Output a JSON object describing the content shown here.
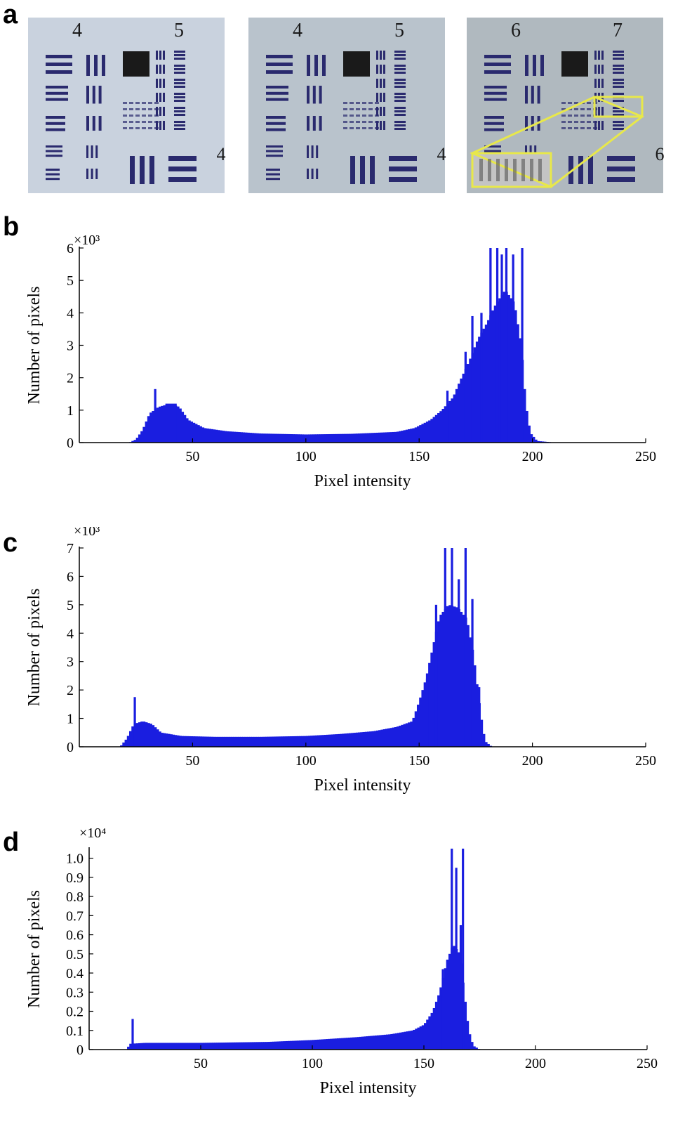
{
  "panel_labels": [
    "a",
    "b",
    "c",
    "d"
  ],
  "panel_a": {
    "images": [
      {
        "top_left": "4",
        "top_right": "5",
        "side": "4",
        "highlight": false
      },
      {
        "top_left": "4",
        "top_right": "5",
        "side": "4",
        "highlight": false
      },
      {
        "top_left": "6",
        "top_right": "7",
        "side": "6",
        "highlight": true
      }
    ]
  },
  "colors": {
    "bars": "#1a1ee0",
    "axis": "#000000",
    "highlight": "#e8e84a"
  },
  "chart_data": [
    {
      "panel": "b",
      "type": "bar",
      "xlabel": "Pixel intensity",
      "ylabel": "Number of pixels",
      "multiplier": "×10³",
      "xlim": [
        0,
        250
      ],
      "ylim": [
        0,
        6
      ],
      "xticks": [
        50,
        100,
        150,
        200,
        250
      ],
      "yticks": [
        0,
        1,
        2,
        3,
        4,
        5,
        6
      ],
      "ytick_labels": [
        "0",
        "1",
        "2",
        "3",
        "4",
        "5",
        "6"
      ],
      "peaks": [
        {
          "x": 33,
          "y": 1.65,
          "w": 1
        },
        {
          "x": 38,
          "y": 1.2,
          "w": 5
        },
        {
          "x": 162,
          "y": 1.6,
          "w": 1
        },
        {
          "x": 170,
          "y": 2.8,
          "w": 1
        },
        {
          "x": 173,
          "y": 3.9,
          "w": 1
        },
        {
          "x": 177,
          "y": 4.0,
          "w": 1
        },
        {
          "x": 181,
          "y": 6.3,
          "w": 1
        },
        {
          "x": 184,
          "y": 6.3,
          "w": 1
        },
        {
          "x": 186,
          "y": 5.8,
          "w": 1
        },
        {
          "x": 188,
          "y": 6.3,
          "w": 1
        },
        {
          "x": 191,
          "y": 5.8,
          "w": 1
        },
        {
          "x": 195,
          "y": 6.3,
          "w": 1
        }
      ],
      "envelope": [
        [
          0,
          0
        ],
        [
          22,
          0
        ],
        [
          25,
          0.1
        ],
        [
          28,
          0.4
        ],
        [
          31,
          0.9
        ],
        [
          35,
          1.1
        ],
        [
          40,
          1.2
        ],
        [
          44,
          1.1
        ],
        [
          48,
          0.7
        ],
        [
          55,
          0.45
        ],
        [
          65,
          0.35
        ],
        [
          80,
          0.28
        ],
        [
          100,
          0.25
        ],
        [
          120,
          0.27
        ],
        [
          140,
          0.33
        ],
        [
          148,
          0.45
        ],
        [
          155,
          0.7
        ],
        [
          160,
          1.0
        ],
        [
          165,
          1.4
        ],
        [
          168,
          1.9
        ],
        [
          172,
          2.5
        ],
        [
          176,
          3.2
        ],
        [
          180,
          3.7
        ],
        [
          184,
          4.3
        ],
        [
          188,
          4.7
        ],
        [
          192,
          4.3
        ],
        [
          195,
          3.0
        ],
        [
          197,
          1.2
        ],
        [
          199,
          0.3
        ],
        [
          202,
          0.05
        ],
        [
          210,
          0
        ],
        [
          250,
          0
        ]
      ]
    },
    {
      "panel": "c",
      "type": "bar",
      "xlabel": "Pixel intensity",
      "ylabel": "Number of pixels",
      "multiplier": "×10³",
      "xlim": [
        0,
        250
      ],
      "ylim": [
        0,
        7
      ],
      "xticks": [
        50,
        100,
        150,
        200,
        250
      ],
      "yticks": [
        0,
        1,
        2,
        3,
        4,
        5,
        6,
        7
      ],
      "ytick_labels": [
        "0",
        "1",
        "2",
        "3",
        "4",
        "5",
        "6",
        "7"
      ],
      "peaks": [
        {
          "x": 24,
          "y": 1.75,
          "w": 1
        },
        {
          "x": 153,
          "y": 2.4,
          "w": 1
        },
        {
          "x": 157,
          "y": 5.0,
          "w": 1
        },
        {
          "x": 161,
          "y": 7.3,
          "w": 1
        },
        {
          "x": 164,
          "y": 7.3,
          "w": 1
        },
        {
          "x": 167,
          "y": 5.9,
          "w": 1
        },
        {
          "x": 170,
          "y": 7.3,
          "w": 1
        },
        {
          "x": 173,
          "y": 5.2,
          "w": 1
        },
        {
          "x": 176,
          "y": 2.1,
          "w": 1
        }
      ],
      "envelope": [
        [
          0,
          0
        ],
        [
          18,
          0
        ],
        [
          21,
          0.3
        ],
        [
          24,
          0.8
        ],
        [
          28,
          0.9
        ],
        [
          32,
          0.8
        ],
        [
          36,
          0.5
        ],
        [
          45,
          0.38
        ],
        [
          60,
          0.35
        ],
        [
          80,
          0.35
        ],
        [
          100,
          0.38
        ],
        [
          115,
          0.45
        ],
        [
          130,
          0.55
        ],
        [
          140,
          0.7
        ],
        [
          147,
          0.9
        ],
        [
          150,
          1.6
        ],
        [
          153,
          2.4
        ],
        [
          156,
          3.5
        ],
        [
          159,
          4.6
        ],
        [
          163,
          5.0
        ],
        [
          167,
          4.9
        ],
        [
          171,
          4.5
        ],
        [
          174,
          3.2
        ],
        [
          177,
          1.2
        ],
        [
          179,
          0.2
        ],
        [
          182,
          0
        ],
        [
          250,
          0
        ]
      ]
    },
    {
      "panel": "d",
      "type": "bar",
      "xlabel": "Pixel intensity",
      "ylabel": "Number of pixels",
      "multiplier": "×10⁴",
      "xlim": [
        0,
        250
      ],
      "ylim": [
        0,
        1.05
      ],
      "xticks": [
        50,
        100,
        150,
        200,
        250
      ],
      "yticks": [
        0,
        0.1,
        0.2,
        0.3,
        0.4,
        0.5,
        0.6,
        0.7,
        0.8,
        0.9,
        1.0
      ],
      "ytick_labels": [
        "0",
        "0.1",
        "0.2",
        "0.3",
        "0.4",
        "0.5",
        "0.6",
        "0.7",
        "0.8",
        "0.9",
        "1.0"
      ],
      "peaks": [
        {
          "x": 19,
          "y": 0.16,
          "w": 1
        },
        {
          "x": 158,
          "y": 0.42,
          "w": 1
        },
        {
          "x": 160,
          "y": 0.47,
          "w": 1
        },
        {
          "x": 162,
          "y": 1.06,
          "w": 1
        },
        {
          "x": 164,
          "y": 0.95,
          "w": 1
        },
        {
          "x": 167,
          "y": 1.06,
          "w": 1
        },
        {
          "x": 166,
          "y": 0.65,
          "w": 1
        }
      ],
      "envelope": [
        [
          0,
          0
        ],
        [
          17,
          0
        ],
        [
          18,
          0.03
        ],
        [
          25,
          0.035
        ],
        [
          50,
          0.035
        ],
        [
          80,
          0.04
        ],
        [
          100,
          0.05
        ],
        [
          120,
          0.065
        ],
        [
          135,
          0.08
        ],
        [
          145,
          0.1
        ],
        [
          150,
          0.13
        ],
        [
          154,
          0.2
        ],
        [
          157,
          0.3
        ],
        [
          160,
          0.45
        ],
        [
          163,
          0.55
        ],
        [
          166,
          0.5
        ],
        [
          168,
          0.3
        ],
        [
          170,
          0.1
        ],
        [
          172,
          0.02
        ],
        [
          175,
          0
        ],
        [
          250,
          0
        ]
      ]
    }
  ]
}
